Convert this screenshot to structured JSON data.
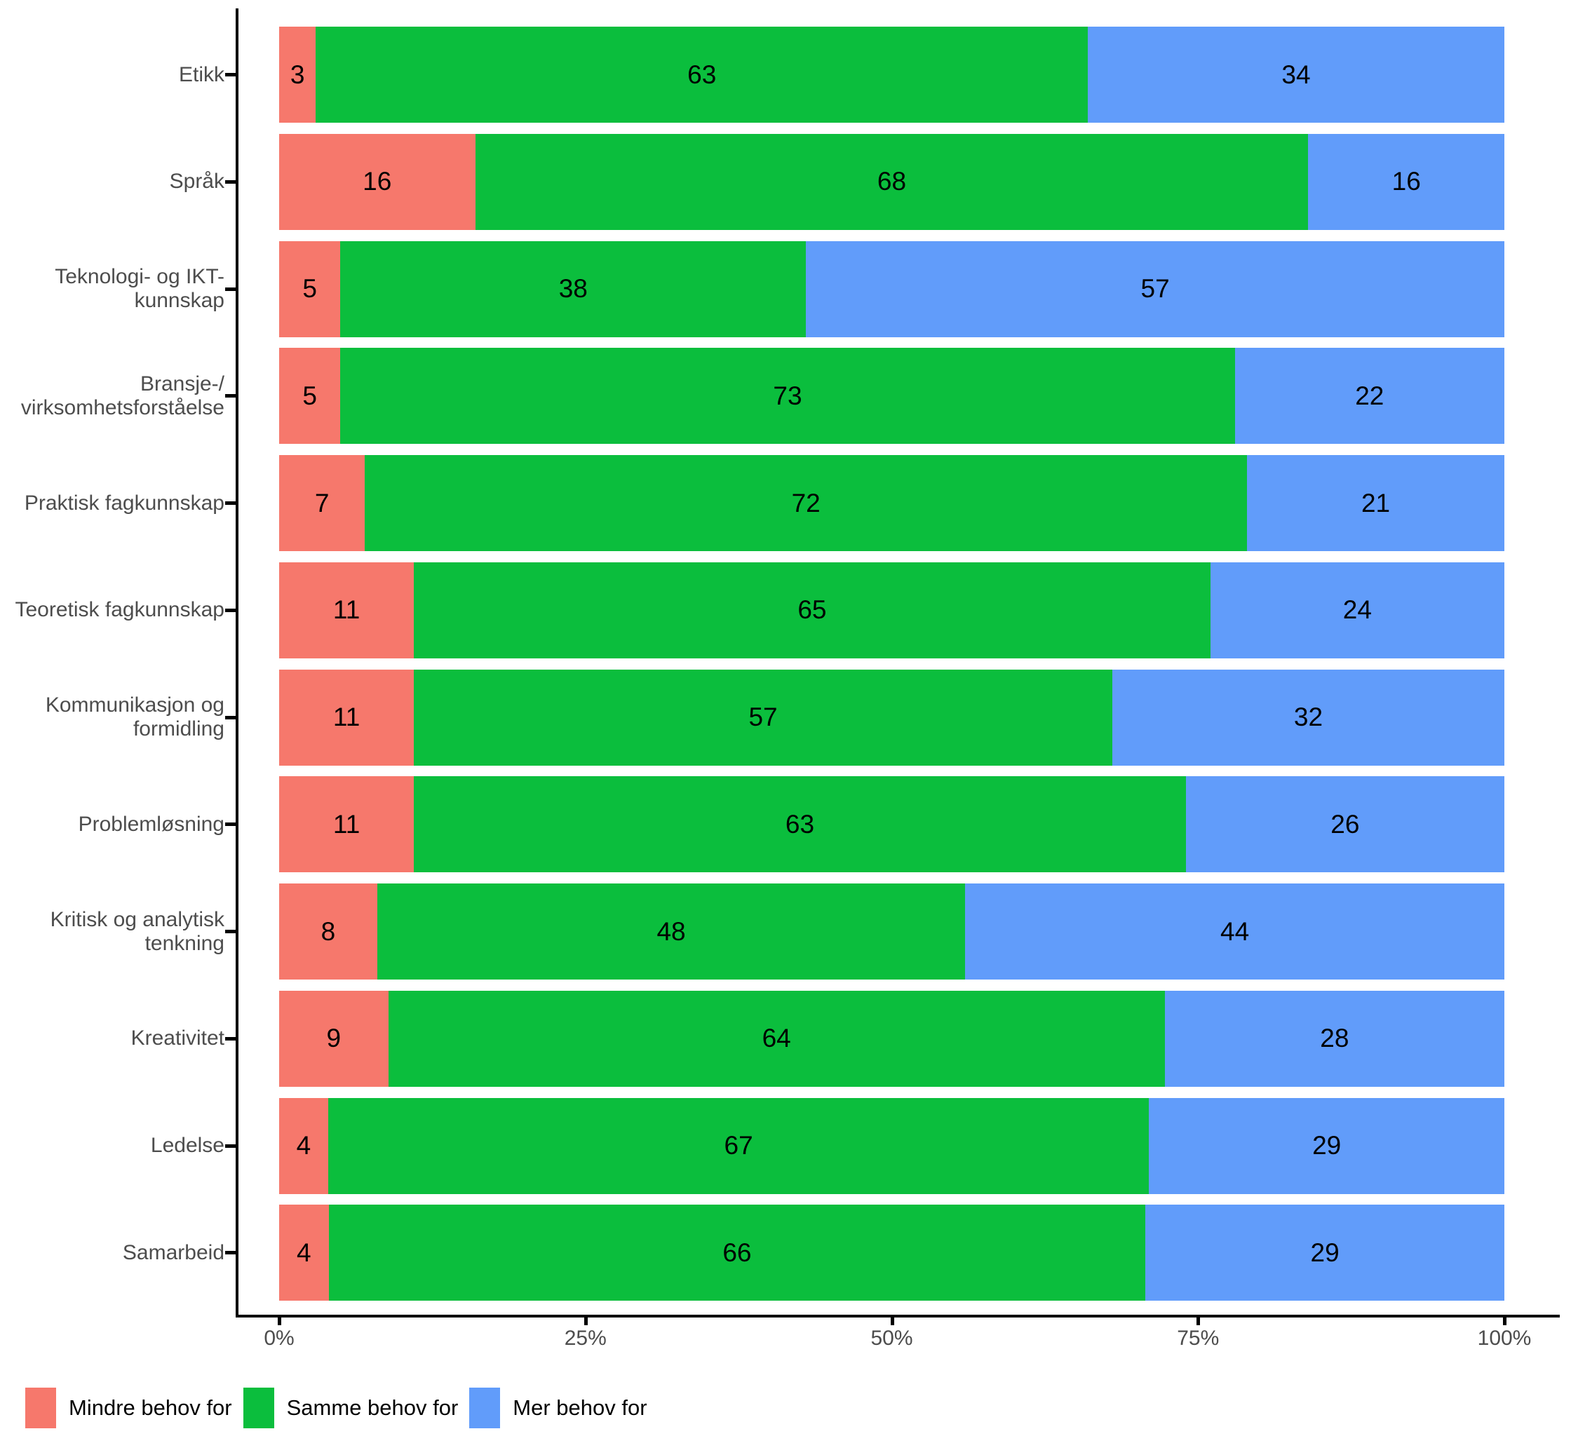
{
  "chart_data": {
    "type": "bar",
    "orientation": "horizontal",
    "stacked": true,
    "unit": "percent",
    "grid": false,
    "legend_position": "bottom",
    "xlim": [
      0,
      100
    ],
    "x_ticks": [
      "0%",
      "25%",
      "50%",
      "75%",
      "100%"
    ],
    "categories": [
      "Etikk",
      "Språk",
      "Teknologi- og IKT-kunnskap",
      "Bransje-/virksomhetsforståelse",
      "Praktisk fagkunnskap",
      "Teoretisk fagkunnskap",
      "Kommunikasjon og formidling",
      "Problemløsning",
      "Kritisk og analytisk tenkning",
      "Kreativitet",
      "Ledelse",
      "Samarbeid"
    ],
    "category_label_lines": [
      [
        "Etikk"
      ],
      [
        "Språk"
      ],
      [
        "Teknologi- og IKT-",
        "kunnskap"
      ],
      [
        "Bransje-/",
        "virksomhetsforståelse"
      ],
      [
        "Praktisk fagkunnskap"
      ],
      [
        "Teoretisk fagkunnskap"
      ],
      [
        "Kommunikasjon og",
        "formidling"
      ],
      [
        "Problemløsning"
      ],
      [
        "Kritisk og analytisk",
        "tenkning"
      ],
      [
        "Kreativitet"
      ],
      [
        "Ledelse"
      ],
      [
        "Samarbeid"
      ]
    ],
    "series": [
      {
        "name": "Mindre behov for",
        "color": "#F6786C",
        "values": [
          3,
          16,
          5,
          5,
          7,
          11,
          11,
          11,
          8,
          9,
          4,
          4
        ]
      },
      {
        "name": "Samme behov for",
        "color": "#0BBE3D",
        "values": [
          63,
          68,
          38,
          73,
          72,
          65,
          57,
          63,
          48,
          64,
          67,
          66
        ]
      },
      {
        "name": "Mer behov for",
        "color": "#619CFA",
        "values": [
          34,
          16,
          57,
          22,
          21,
          24,
          32,
          26,
          44,
          28,
          29,
          29
        ]
      }
    ],
    "value_label_color": "#000000",
    "axis_text_color": "#4d4d4d",
    "axis_line_color": "#000000"
  }
}
